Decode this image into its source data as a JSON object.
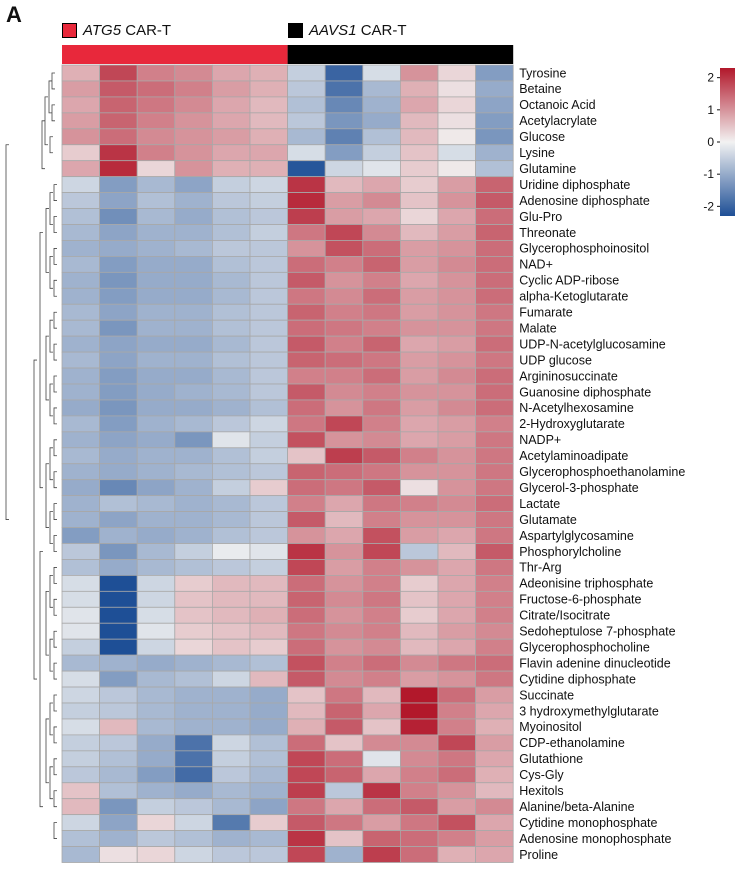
{
  "panel_letter": "A",
  "legend": [
    {
      "gene": "ATG5",
      "suffix": " CAR-T",
      "color": "#e8283b"
    },
    {
      "gene": "AAVS1",
      "suffix": " CAR-T",
      "color": "#000000"
    }
  ],
  "chart_data": {
    "type": "heatmap",
    "title": "",
    "groups": [
      {
        "name": "ATG5 CAR-T",
        "columns": [
          0,
          1,
          2,
          3,
          4,
          5
        ],
        "color": "#e8283b"
      },
      {
        "name": "AAVS1 CAR-T",
        "columns": [
          6,
          7,
          8,
          9,
          10,
          11
        ],
        "color": "#000000"
      }
    ],
    "colorbar": {
      "min": -2.3,
      "max": 2.3,
      "ticks": [
        2,
        1,
        0,
        -1,
        -2
      ],
      "low_color": "#1e4f96",
      "mid_color": "#f2f2f2",
      "high_color": "#b2182b"
    },
    "rows": [
      "Tyrosine",
      "Betaine",
      "Octanoic Acid",
      "Acetylacrylate",
      "Glucose",
      "Lysine",
      "Glutamine",
      "Uridine diphosphate",
      "Adenosine diphosphate",
      "Glu-Pro",
      "Threonate",
      "Glycerophosphoinositol",
      "NAD+",
      "Cyclic ADP-ribose",
      "alpha-Ketoglutarate",
      "Fumarate",
      "Malate",
      "UDP-N-acetylglucosamine",
      "UDP glucose",
      "Argininosuccinate",
      "Guanosine diphosphate",
      "N-Acetylhexosamine",
      "2-Hydroxyglutarate",
      "NADP+",
      "Acetylaminoadipate",
      "Glycerophosphoethanolamine",
      "Glycerol-3-phosphate",
      "Lactate",
      "Glutamate",
      "Aspartylglycosamine",
      "Phosphorylcholine",
      "Thr-Arg",
      "Adeonisine triphosphate",
      "Fructose-6-phosphate",
      "Citrate/Isocitrate",
      "Sedoheptulose 7-phosphate",
      "Glycerophosphocholine",
      "Flavin adenine dinucleotide",
      "Cytidine diphosphate",
      "Succinate",
      "3 hydroxymethylglutarate",
      "Myoinositol",
      "CDP-ethanolamine",
      "Glutathione",
      "Cys-Gly",
      "Hexitols",
      "Alanine/beta-Alanine",
      "Cytidine monophosphate",
      "Adenosine monophosphate",
      "Proline"
    ],
    "values": [
      [
        0.7,
        1.8,
        1.2,
        1.1,
        0.8,
        0.7,
        -0.5,
        -2.0,
        -0.3,
        1.0,
        0.3,
        -1.2
      ],
      [
        0.9,
        1.6,
        1.4,
        1.2,
        0.9,
        0.7,
        -0.6,
        -1.8,
        -0.8,
        0.7,
        0.2,
        -1.0
      ],
      [
        0.8,
        1.5,
        1.3,
        1.1,
        0.8,
        0.6,
        -0.7,
        -1.5,
        -0.9,
        0.8,
        0.3,
        -1.1
      ],
      [
        0.9,
        1.5,
        1.2,
        1.0,
        0.8,
        0.6,
        -0.6,
        -1.3,
        -1.0,
        0.6,
        0.2,
        -1.2
      ],
      [
        1.0,
        1.4,
        1.1,
        1.0,
        0.9,
        0.7,
        -0.8,
        -1.6,
        -0.7,
        0.6,
        0.1,
        -1.3
      ],
      [
        0.4,
        2.0,
        1.2,
        1.0,
        0.8,
        0.8,
        -0.3,
        -1.2,
        -0.5,
        0.5,
        -0.3,
        -0.9
      ],
      [
        0.8,
        2.1,
        0.3,
        1.0,
        0.7,
        0.7,
        -2.2,
        -0.4,
        -0.2,
        0.4,
        0.1,
        -0.7
      ],
      [
        -0.4,
        -1.2,
        -0.8,
        -1.1,
        -0.5,
        -0.4,
        2.0,
        0.6,
        0.8,
        0.4,
        0.9,
        1.5
      ],
      [
        -0.6,
        -1.1,
        -0.7,
        -0.9,
        -0.6,
        -0.5,
        2.1,
        0.9,
        1.1,
        0.5,
        1.0,
        1.6
      ],
      [
        -0.7,
        -1.4,
        -0.8,
        -1.0,
        -0.7,
        -0.6,
        1.9,
        0.9,
        0.8,
        0.3,
        0.8,
        1.4
      ],
      [
        -0.8,
        -1.1,
        -0.9,
        -0.9,
        -0.7,
        -0.5,
        1.3,
        1.8,
        1.1,
        0.6,
        0.9,
        1.5
      ],
      [
        -0.9,
        -1.0,
        -0.9,
        -0.8,
        -0.6,
        -0.6,
        1.0,
        1.7,
        1.4,
        0.9,
        1.0,
        1.4
      ],
      [
        -0.8,
        -1.2,
        -1.0,
        -1.0,
        -0.7,
        -0.6,
        1.4,
        1.2,
        1.5,
        0.9,
        1.1,
        1.4
      ],
      [
        -0.9,
        -1.3,
        -1.0,
        -1.0,
        -0.8,
        -0.6,
        1.6,
        1.0,
        1.2,
        0.8,
        1.0,
        1.4
      ],
      [
        -0.9,
        -1.2,
        -1.0,
        -1.0,
        -0.8,
        -0.6,
        1.3,
        1.1,
        1.4,
        0.9,
        1.0,
        1.4
      ],
      [
        -0.8,
        -1.1,
        -0.9,
        -0.9,
        -0.7,
        -0.6,
        1.5,
        1.2,
        1.3,
        0.9,
        1.0,
        1.3
      ],
      [
        -0.8,
        -1.3,
        -0.9,
        -0.9,
        -0.7,
        -0.6,
        1.4,
        1.3,
        1.2,
        1.0,
        1.0,
        1.3
      ],
      [
        -0.9,
        -1.1,
        -1.0,
        -1.0,
        -0.8,
        -0.6,
        1.6,
        1.2,
        1.5,
        0.8,
        0.9,
        1.4
      ],
      [
        -0.8,
        -1.1,
        -0.9,
        -0.9,
        -0.7,
        -0.6,
        1.5,
        1.4,
        1.3,
        0.9,
        1.0,
        1.3
      ],
      [
        -0.9,
        -1.2,
        -1.0,
        -1.0,
        -0.8,
        -0.6,
        1.2,
        1.2,
        1.4,
        0.9,
        1.1,
        1.4
      ],
      [
        -0.9,
        -1.2,
        -1.0,
        -0.9,
        -0.8,
        -0.6,
        1.6,
        1.1,
        1.2,
        1.0,
        1.0,
        1.4
      ],
      [
        -1.0,
        -1.3,
        -1.0,
        -1.0,
        -0.9,
        -0.7,
        1.4,
        1.0,
        1.3,
        0.9,
        1.1,
        1.4
      ],
      [
        -0.8,
        -1.2,
        -0.9,
        -0.8,
        -0.6,
        -0.4,
        1.3,
        1.8,
        1.2,
        0.8,
        0.9,
        1.2
      ],
      [
        -0.9,
        -1.1,
        -1.0,
        -1.3,
        -0.2,
        -0.5,
        1.7,
        1.0,
        1.1,
        0.8,
        0.9,
        1.3
      ],
      [
        -0.8,
        -1.0,
        -0.9,
        -0.9,
        -0.7,
        -0.5,
        0.5,
        1.9,
        1.6,
        1.2,
        1.0,
        1.3
      ],
      [
        -0.9,
        -1.0,
        -0.9,
        -0.8,
        -0.7,
        -0.6,
        1.5,
        1.4,
        1.3,
        1.0,
        1.0,
        1.3
      ],
      [
        -1.0,
        -1.5,
        -1.1,
        -0.9,
        -0.5,
        0.4,
        1.4,
        1.3,
        1.6,
        0.2,
        1.0,
        1.3
      ],
      [
        -0.9,
        -0.7,
        -0.8,
        -0.9,
        -0.8,
        -0.6,
        1.2,
        0.8,
        1.3,
        1.2,
        1.1,
        1.4
      ],
      [
        -0.9,
        -1.1,
        -0.9,
        -0.9,
        -0.8,
        -0.6,
        1.6,
        0.6,
        1.2,
        1.0,
        1.0,
        1.3
      ],
      [
        -1.2,
        -0.9,
        -1.0,
        -0.9,
        -0.7,
        -0.6,
        1.0,
        0.8,
        1.7,
        0.9,
        0.8,
        1.3
      ],
      [
        -0.6,
        -1.3,
        -0.8,
        -0.5,
        -0.1,
        -0.2,
        2.0,
        1.0,
        1.8,
        -0.6,
        0.6,
        1.6
      ],
      [
        -0.7,
        -1.0,
        -0.8,
        -0.7,
        -0.6,
        -0.5,
        1.8,
        0.9,
        1.2,
        1.0,
        0.8,
        1.3
      ],
      [
        -0.3,
        -2.3,
        -0.4,
        0.4,
        0.6,
        0.6,
        1.4,
        1.0,
        1.2,
        0.4,
        0.8,
        1.2
      ],
      [
        -0.3,
        -2.3,
        -0.4,
        0.5,
        0.6,
        0.6,
        1.5,
        1.1,
        1.3,
        0.5,
        0.8,
        1.2
      ],
      [
        -0.2,
        -2.3,
        -0.3,
        0.5,
        0.6,
        0.7,
        1.4,
        1.0,
        1.2,
        0.4,
        0.8,
        1.2
      ],
      [
        -0.2,
        -2.3,
        -0.2,
        0.4,
        0.5,
        0.6,
        1.3,
        1.1,
        1.2,
        0.6,
        0.9,
        1.1
      ],
      [
        -0.5,
        -2.3,
        -0.4,
        0.3,
        0.5,
        0.4,
        1.4,
        1.0,
        1.1,
        0.6,
        0.8,
        1.2
      ],
      [
        -0.8,
        -0.9,
        -1.0,
        -0.9,
        -0.8,
        -0.7,
        1.7,
        1.2,
        1.4,
        1.1,
        1.3,
        1.4
      ],
      [
        -0.3,
        -1.2,
        -0.8,
        -0.7,
        -0.4,
        0.6,
        1.6,
        1.1,
        1.2,
        0.9,
        1.0,
        1.3
      ],
      [
        -0.4,
        -0.6,
        -0.8,
        -0.9,
        -0.9,
        -1.0,
        0.5,
        1.3,
        0.6,
        2.3,
        1.4,
        0.9
      ],
      [
        -0.5,
        -0.6,
        -0.8,
        -0.9,
        -0.9,
        -1.0,
        0.6,
        1.5,
        0.8,
        2.3,
        1.2,
        0.8
      ],
      [
        -0.3,
        0.6,
        -0.8,
        -0.9,
        -0.9,
        -1.0,
        0.7,
        1.6,
        0.5,
        2.2,
        1.2,
        0.7
      ],
      [
        -0.5,
        -0.6,
        -1.0,
        -1.8,
        -0.4,
        -0.7,
        1.4,
        0.5,
        1.1,
        1.1,
        1.8,
        0.9
      ],
      [
        -0.5,
        -0.7,
        -1.0,
        -1.8,
        -0.5,
        -0.7,
        1.8,
        1.4,
        -0.2,
        1.1,
        1.3,
        0.8
      ],
      [
        -0.6,
        -0.8,
        -1.2,
        -1.9,
        -0.6,
        -0.8,
        1.8,
        1.5,
        0.8,
        1.2,
        1.4,
        0.7
      ],
      [
        0.5,
        -0.7,
        -0.9,
        -1.0,
        -0.8,
        -0.9,
        1.9,
        -0.6,
        2.0,
        1.2,
        1.0,
        0.6
      ],
      [
        0.6,
        -1.3,
        -0.5,
        -0.6,
        -0.8,
        -1.1,
        1.3,
        0.8,
        1.4,
        1.6,
        0.9,
        1.1
      ],
      [
        -0.4,
        -1.1,
        0.3,
        -0.4,
        -1.7,
        0.4,
        1.6,
        1.3,
        0.9,
        1.3,
        1.7,
        0.8
      ],
      [
        -0.7,
        -0.9,
        -0.6,
        -0.7,
        -0.9,
        -0.8,
        2.0,
        0.5,
        1.5,
        1.4,
        1.2,
        0.9
      ],
      [
        -0.8,
        0.2,
        0.3,
        -0.4,
        -0.6,
        -0.6,
        1.8,
        -0.9,
        1.9,
        1.4,
        0.7,
        0.8
      ]
    ]
  }
}
